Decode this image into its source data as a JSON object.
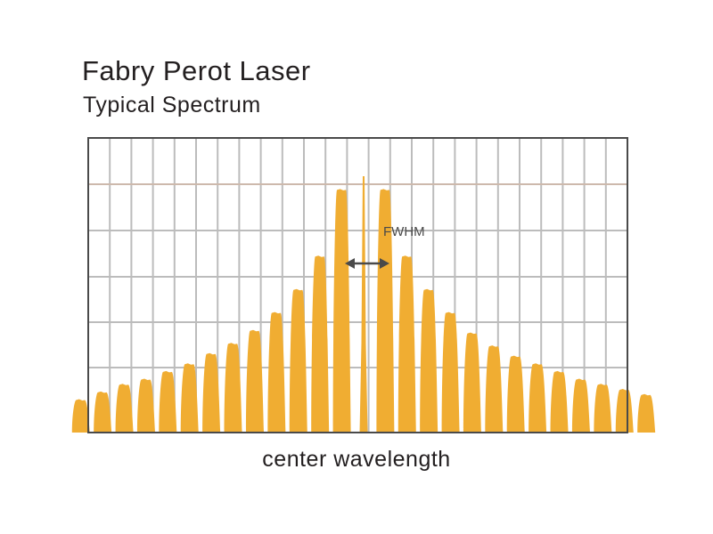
{
  "chart": {
    "title": "Fabry Perot Laser",
    "subtitle": "Typical Spectrum",
    "xlabel": "center wavelength",
    "annotation": "FWHM"
  },
  "chart_data": {
    "type": "area",
    "title": "Fabry Perot Laser",
    "subtitle": "Typical Spectrum",
    "xlabel": "center wavelength",
    "ylabel": "",
    "x_ticks_shown": false,
    "y_ticks_shown": false,
    "grid": true,
    "legend": "none",
    "ylim": [
      0,
      1
    ],
    "series": [
      {
        "name": "",
        "mode_index": [
          -13,
          -12,
          -11,
          -10,
          -9,
          -8,
          -7,
          -6,
          -5,
          -4,
          -3,
          -2,
          -1,
          0,
          1,
          2,
          3,
          4,
          5,
          6,
          7,
          8,
          9,
          10,
          11,
          12,
          13
        ],
        "relative_intensity": [
          0.13,
          0.16,
          0.19,
          0.21,
          0.24,
          0.27,
          0.31,
          0.35,
          0.4,
          0.47,
          0.56,
          0.69,
          0.95,
          1.0,
          0.95,
          0.69,
          0.56,
          0.47,
          0.39,
          0.34,
          0.3,
          0.27,
          0.24,
          0.21,
          0.19,
          0.17,
          0.15
        ]
      }
    ],
    "annotations": [
      {
        "text": "FWHM",
        "type": "double-arrow",
        "spans": "central modes"
      }
    ],
    "colors": {
      "spectrum": "#f0ad32",
      "grid": "#bcbcbc",
      "reference_line": "#cdb9ac",
      "frame": "#4a4a4a",
      "arrow": "#4a4a4a"
    }
  }
}
